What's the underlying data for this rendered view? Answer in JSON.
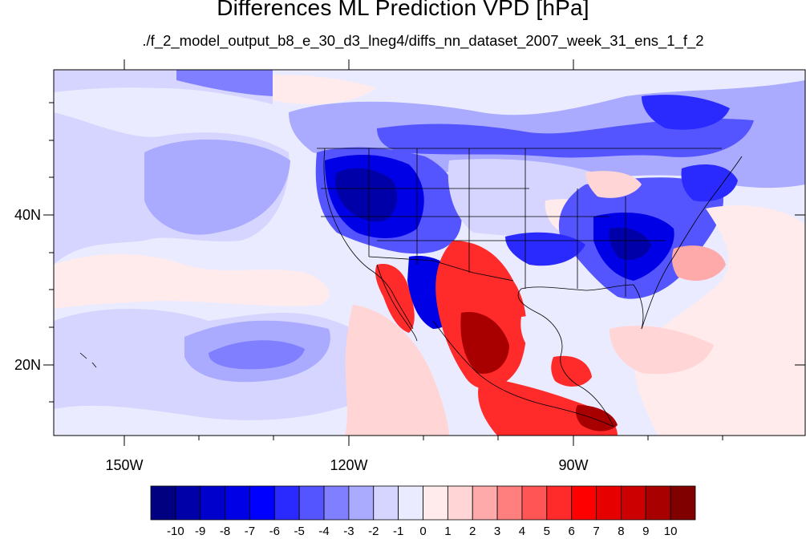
{
  "title": "Differences ML Prediction VPD [hPa]",
  "subtitle": "./f_2_model_output_b8_e_30_d3_lneg4/diffs_nn_dataset_2007_week_31_ens_1_f_2",
  "axes": {
    "lat_labels": [
      "40N",
      "20N"
    ],
    "lon_labels": [
      "150W",
      "120W",
      "90W"
    ]
  },
  "colorbar": {
    "labels": [
      "-10",
      "-9",
      "-8",
      "-7",
      "-6",
      "-5",
      "-4",
      "-3",
      "-2",
      "-1",
      "0",
      "1",
      "2",
      "3",
      "4",
      "5",
      "6",
      "7",
      "8",
      "9",
      "10"
    ],
    "colors": [
      "#000080",
      "#0000a8",
      "#0000cc",
      "#0000e6",
      "#0000ff",
      "#2a2aff",
      "#5555ff",
      "#7f7fff",
      "#aaaaff",
      "#d5d5ff",
      "#ebebff",
      "#ffebeb",
      "#ffd5d5",
      "#ffaaaa",
      "#ff7f7f",
      "#ff5555",
      "#ff2a2a",
      "#ff0000",
      "#e60000",
      "#cc0000",
      "#a80000",
      "#800000"
    ]
  },
  "map_colors": {
    "ocean_base": "#ebebff",
    "land_outline": "#000000"
  }
}
